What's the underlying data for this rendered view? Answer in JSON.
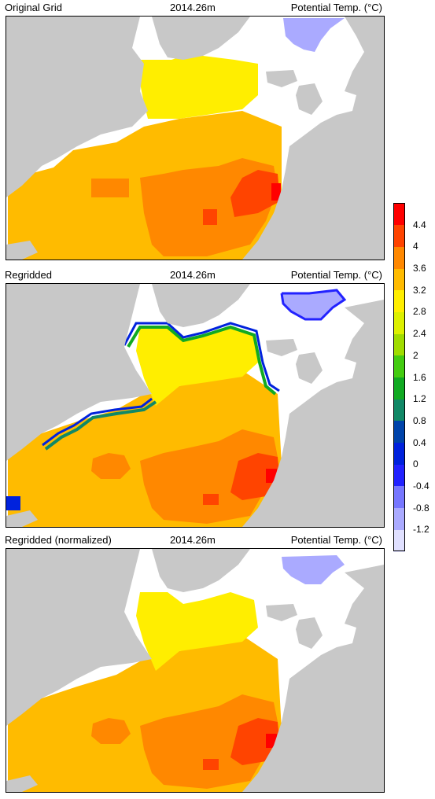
{
  "panels": [
    {
      "left_title": "Original Grid",
      "center_title": "2014.26m",
      "right_title": "Potential Temp. (°C)"
    },
    {
      "left_title": "Regridded",
      "center_title": "2014.26m",
      "right_title": "Potential Temp. (°C)"
    },
    {
      "left_title": "Regridded (normalized)",
      "center_title": "2014.26m",
      "right_title": "Potential Temp. (°C)"
    }
  ],
  "colorbar": {
    "labels": [
      "4.4",
      "4",
      "3.6",
      "3.2",
      "2.8",
      "2.4",
      "2",
      "1.6",
      "1.2",
      "0.8",
      "0.4",
      "0",
      "-0.4",
      "-0.8",
      "-1.2"
    ],
    "colors_top_to_bottom": [
      "#ff0000",
      "#ff4400",
      "#ff8800",
      "#ffbb00",
      "#ffee00",
      "#ddf000",
      "#a0dc00",
      "#44cc11",
      "#11aa22",
      "#118866",
      "#0044aa",
      "#0022dd",
      "#2222ff",
      "#7777ff",
      "#aaaaff",
      "#e0e0ff"
    ]
  },
  "colors": {
    "land": "#c8c8c8",
    "ocean_background": "#ffffff",
    "temp_3_2_to_3_6": "#ffbb00",
    "temp_3_6_to_4_0": "#ff8800",
    "temp_4_0_to_4_4": "#ff4400",
    "temp_2_8_to_3_2": "#ffee00",
    "cold_patch": "#aaaaff"
  }
}
